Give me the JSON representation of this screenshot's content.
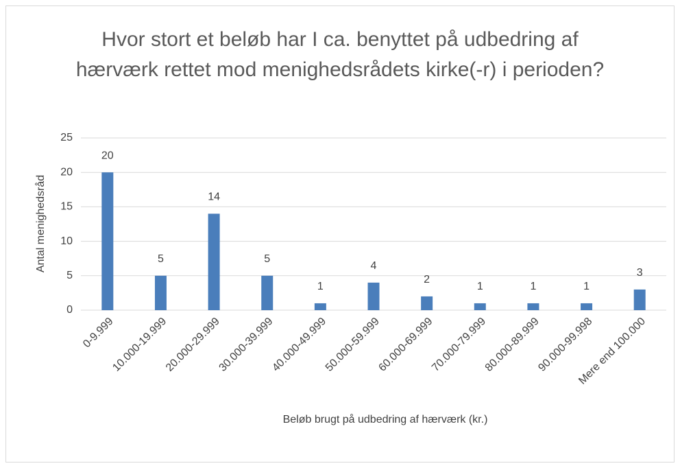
{
  "chart_data": {
    "type": "bar",
    "title": "Hvor stort et beløb har I ca. benyttet på udbedring af hærværk rettet mod menighedsrådets kirke(-r) i perioden?",
    "x_label": "Beløb brugt på udbedring af hærværk (kr.)",
    "y_label": "Antal menighedsråd",
    "categories": [
      "0-9.999",
      "10.000-19.999",
      "20.000-29.999",
      "30.000-39.999",
      "40.000-49.999",
      "50.000-59.999",
      "60.000-69.999",
      "70.000-79.999",
      "80.000-89.999",
      "90.000-99.998",
      "Mere end 100.000"
    ],
    "values": [
      20,
      5,
      14,
      5,
      1,
      4,
      2,
      1,
      1,
      1,
      3
    ],
    "color": "#4a7ebb",
    "ylim": [
      0,
      25
    ],
    "yticks": [
      0,
      5,
      10,
      15,
      20,
      25
    ],
    "grid": true
  }
}
